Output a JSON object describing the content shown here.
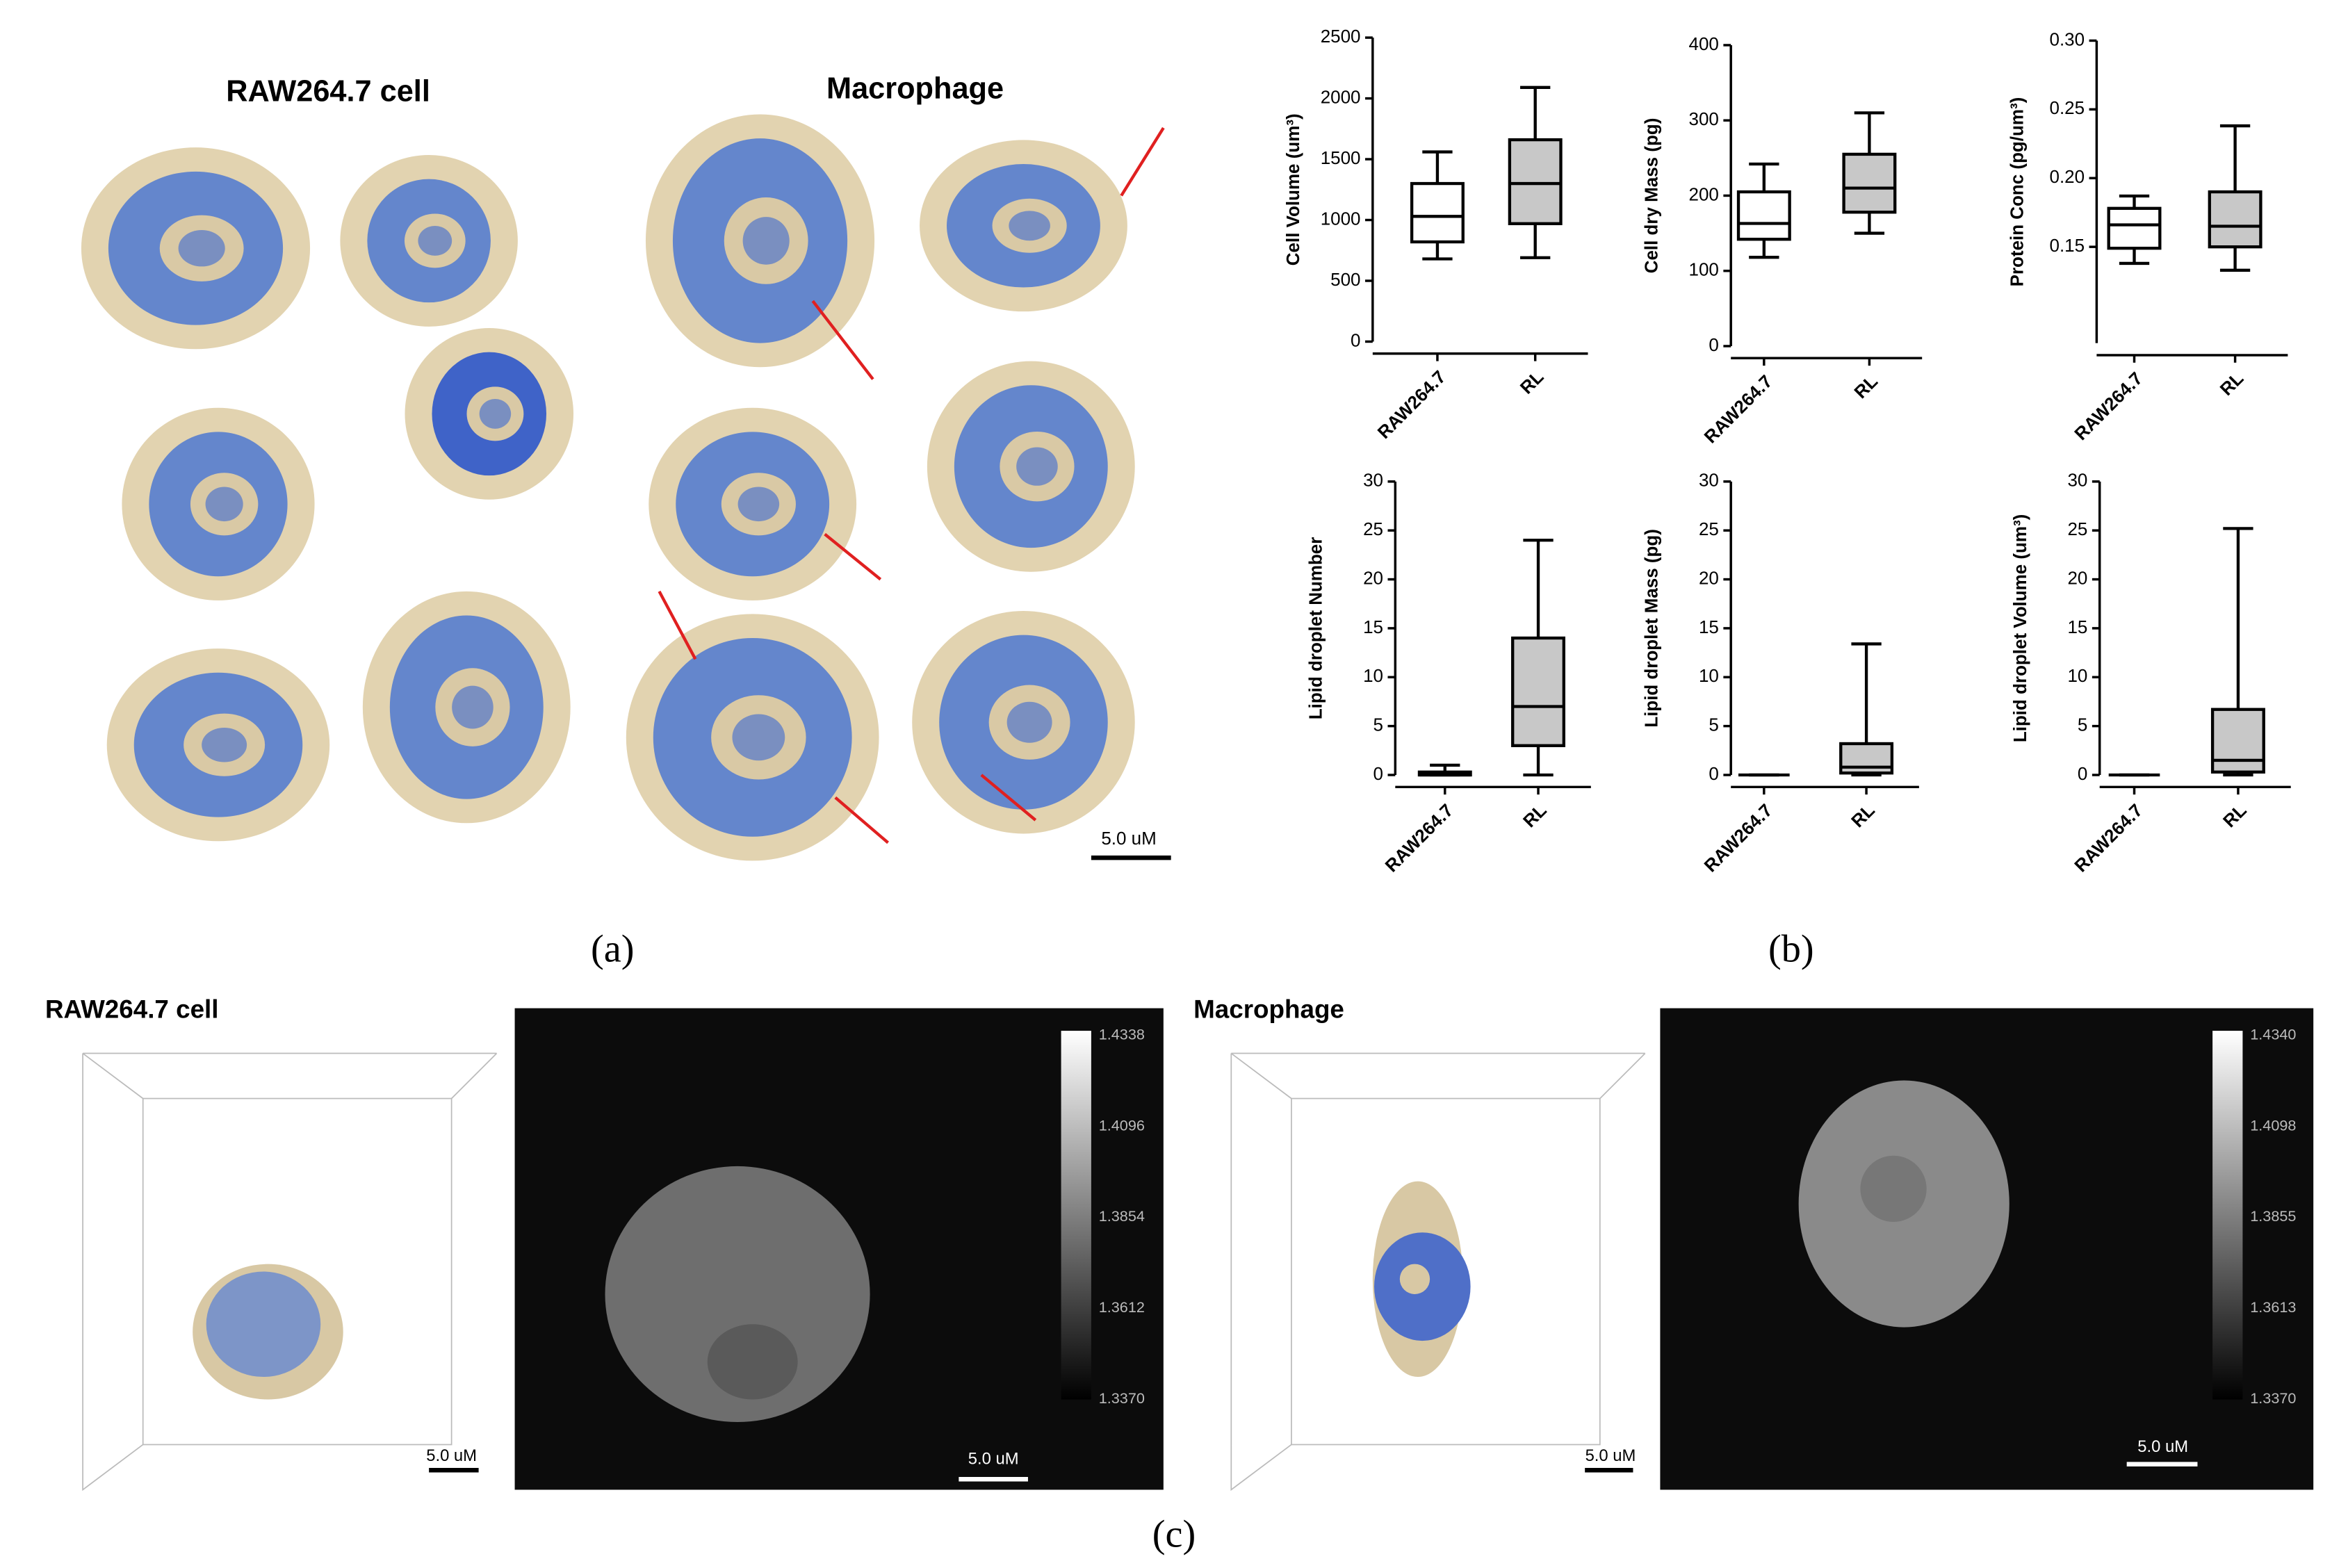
{
  "figure": {
    "panel_a": {
      "label": "(a)",
      "headings": [
        "RAW264.7 cell",
        "Macrophage"
      ],
      "scale_bar": "5.0 uM"
    },
    "panel_b": {
      "label": "(b)"
    },
    "panel_c": {
      "label": "(c)",
      "left": {
        "heading": "RAW264.7 cell",
        "scale_bars": [
          "5.0 uM",
          "5.0 uM"
        ],
        "colorbar": [
          "1.4338",
          "1.4096",
          "1.3854",
          "1.3612",
          "1.3370"
        ]
      },
      "right": {
        "heading": "Macrophage",
        "scale_bars": [
          "5.0 uM",
          "5.0 uM"
        ],
        "colorbar": [
          "1.4340",
          "1.4098",
          "1.3855",
          "1.3613",
          "1.3370"
        ]
      }
    }
  },
  "chart_data": [
    {
      "type": "box",
      "y_label": "Cell Volume (um³)",
      "categories": [
        "RAW264.7",
        "RL"
      ],
      "colors": [
        "#ffffff",
        "#c8c8c8"
      ],
      "min": [
        680,
        690
      ],
      "q1": [
        820,
        970
      ],
      "median": [
        1030,
        1300
      ],
      "q3": [
        1300,
        1660
      ],
      "max": [
        1560,
        2090
      ],
      "ylim": [
        0,
        2500
      ],
      "yticks": [
        0,
        500,
        1000,
        1500,
        2000,
        2500
      ]
    },
    {
      "type": "box",
      "y_label": "Cell dry Mass (pg)",
      "categories": [
        "RAW264.7",
        "RL"
      ],
      "colors": [
        "#ffffff",
        "#c8c8c8"
      ],
      "min": [
        118,
        150
      ],
      "q1": [
        142,
        178
      ],
      "median": [
        163,
        210
      ],
      "q3": [
        205,
        255
      ],
      "max": [
        242,
        310
      ],
      "ylim": [
        0,
        400
      ],
      "yticks": [
        0,
        100,
        200,
        300,
        400
      ]
    },
    {
      "type": "box",
      "y_label": "Protein Conc (pg/um³)",
      "categories": [
        "RAW264.7",
        "RL"
      ],
      "colors": [
        "#ffffff",
        "#c8c8c8"
      ],
      "min": [
        0.138,
        0.133
      ],
      "q1": [
        0.149,
        0.15
      ],
      "median": [
        0.166,
        0.165
      ],
      "q3": [
        0.178,
        0.19
      ],
      "max": [
        0.187,
        0.238
      ],
      "ylim": [
        0.08,
        0.3
      ],
      "yticks": [
        0.15,
        {
          "value": 0.2,
          "label": "0.20"
        },
        0.25,
        {
          "value": 0.3,
          "label": "0.30"
        }
      ]
    },
    {
      "type": "box",
      "y_label": "Lipid droplet Number",
      "categories": [
        "RAW264.7",
        "RL"
      ],
      "colors": [
        "#ffffff",
        "#c8c8c8"
      ],
      "min": [
        0,
        0
      ],
      "q1": [
        0,
        3
      ],
      "median": [
        0,
        7
      ],
      "q3": [
        0.3,
        14
      ],
      "max": [
        1,
        24
      ],
      "ylim": [
        0,
        30
      ],
      "yticks": [
        0,
        5,
        10,
        15,
        20,
        25,
        30
      ]
    },
    {
      "type": "box",
      "y_label": "Lipid droplet Mass (pg)",
      "categories": [
        "RAW264.7",
        "RL"
      ],
      "colors": [
        "#ffffff",
        "#c8c8c8"
      ],
      "min": [
        0,
        0
      ],
      "q1": [
        0,
        0.2
      ],
      "median": [
        0,
        0.8
      ],
      "q3": [
        0,
        3.2
      ],
      "max": [
        0,
        13.4
      ],
      "ylim": [
        0,
        30
      ],
      "yticks": [
        0,
        5,
        10,
        15,
        20,
        25,
        30
      ]
    },
    {
      "type": "box",
      "y_label": "Lipid droplet Volume (um³)",
      "categories": [
        "RAW264.7",
        "RL"
      ],
      "colors": [
        "#ffffff",
        "#c8c8c8"
      ],
      "min": [
        0,
        0
      ],
      "q1": [
        0,
        0.3
      ],
      "median": [
        0,
        1.5
      ],
      "q3": [
        0,
        6.7
      ],
      "max": [
        0,
        25.2
      ],
      "ylim": [
        0,
        30
      ],
      "yticks": [
        0,
        5,
        10,
        15,
        20,
        25,
        30
      ]
    }
  ]
}
